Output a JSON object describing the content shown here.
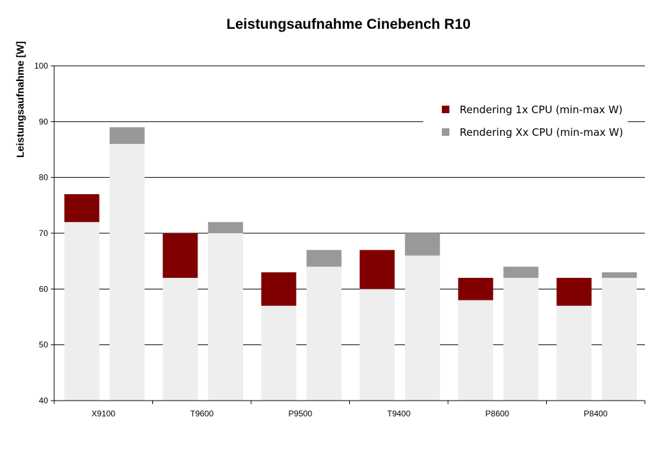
{
  "chart_data": {
    "type": "bar",
    "title": "Leistungsaufnahme Cinebench R10",
    "ylabel": "Leistungsaufnahme [W]",
    "xlabel": "",
    "ylim": [
      40,
      100
    ],
    "yticks": [
      40,
      50,
      60,
      70,
      80,
      90,
      100
    ],
    "grid": true,
    "legend_position": "top-right",
    "categories": [
      "X9100",
      "T9600",
      "P9500",
      "T9400",
      "P8600",
      "P8400"
    ],
    "series": [
      {
        "name": "Rendering 1x CPU (min-max W)",
        "color": "#800000",
        "min": [
          72,
          62,
          57,
          60,
          58,
          57
        ],
        "max": [
          77,
          70,
          63,
          67,
          62,
          62
        ]
      },
      {
        "name": "Rendering Xx CPU (min-max W)",
        "color": "#999999",
        "min": [
          86,
          70,
          64,
          66,
          62,
          62
        ],
        "max": [
          89,
          72,
          67,
          70,
          64,
          63
        ]
      }
    ],
    "base_color": "#eeeeee"
  }
}
